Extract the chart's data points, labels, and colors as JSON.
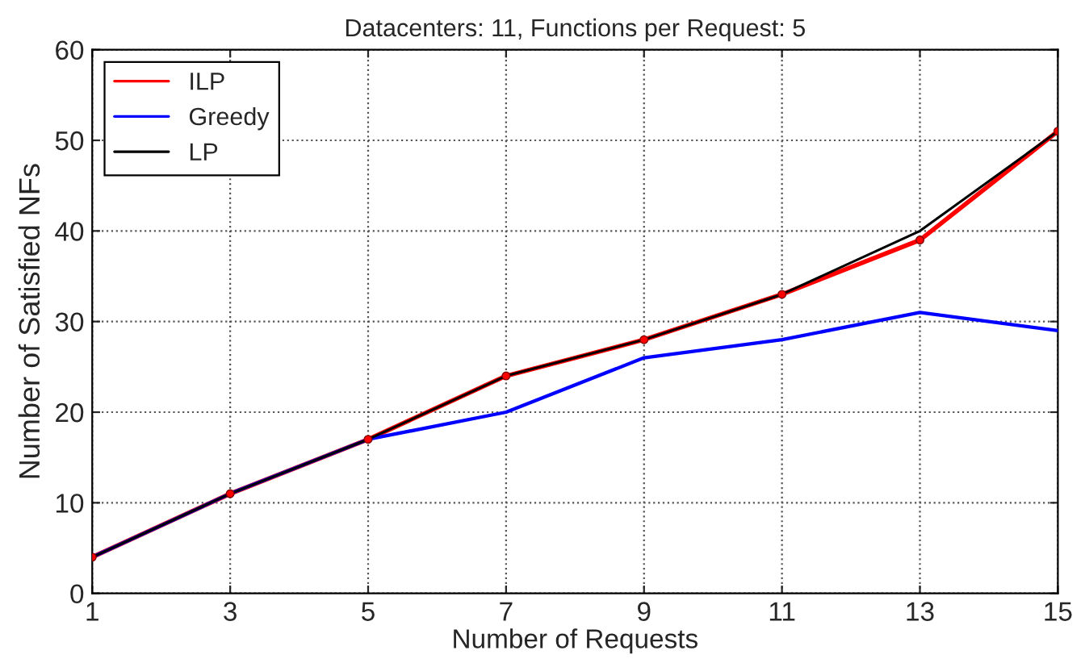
{
  "chart_data": {
    "type": "line",
    "title": "Datacenters: 11, Functions per Request: 5",
    "xlabel": "Number of Requests",
    "ylabel": "Number of Satisfied NFs",
    "x": [
      1,
      3,
      5,
      7,
      9,
      11,
      13,
      15
    ],
    "series": [
      {
        "name": "ILP",
        "color": "#ff0000",
        "values": [
          4,
          11,
          17,
          24,
          28,
          33,
          39,
          51
        ],
        "marker": "circle"
      },
      {
        "name": "Greedy",
        "color": "#0000ff",
        "values": [
          4,
          11,
          17,
          20,
          26,
          28,
          31,
          29
        ]
      },
      {
        "name": "LP",
        "color": "#000000",
        "values": [
          4,
          11,
          17,
          24,
          28,
          33,
          40,
          51
        ]
      }
    ],
    "xlim": [
      1,
      15
    ],
    "xticks": [
      1,
      3,
      5,
      7,
      9,
      11,
      13,
      15
    ],
    "ylim": [
      0,
      60
    ],
    "yticks": [
      0,
      10,
      20,
      30,
      40,
      50,
      60
    ],
    "grid": true,
    "legend": "top left",
    "line_style": "solid"
  }
}
